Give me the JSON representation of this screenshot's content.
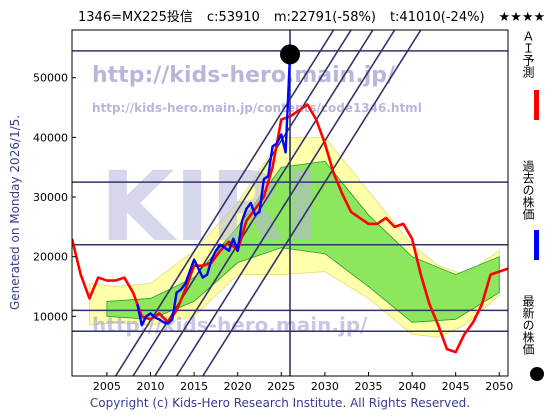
{
  "header": {
    "code": "1346=MX225投信",
    "current": "c:53910",
    "min": "m:22791(-58%)",
    "t": "t:41010(-24%)",
    "stars": "★★★★"
  },
  "left_caption": "Generated on Monday 2026/1/5.",
  "footer": "Copyright (c) Kids-Hero Research Institute. All Rights Reserved.",
  "watermark": {
    "url": "http://kids-hero.main.jp/",
    "url_path": "http://kids-hero.main.jp/contents/code1346.html",
    "big": "KIRI",
    "bottom": "http://kids-hero.main.jp/"
  },
  "legend": [
    {
      "label": "ＡＩ予測",
      "color": "#ff0000"
    },
    {
      "label": "過去の株価",
      "color": "#0000ff"
    },
    {
      "label": "最新の株価",
      "color": "#000000"
    }
  ],
  "colors": {
    "ai": "#ff0000",
    "past": "#0000ff",
    "green_band": "#66dd44",
    "yellow_band": "#ffffaa",
    "grid": "#33336b"
  },
  "chart_data": {
    "type": "line",
    "x_range": [
      2001,
      2051
    ],
    "y_range": [
      0,
      58000
    ],
    "x_ticks": [
      2005,
      2010,
      2015,
      2020,
      2025,
      2030,
      2035,
      2040,
      2045,
      2050
    ],
    "y_ticks": [
      10000,
      20000,
      30000,
      40000,
      50000
    ],
    "horizontal_lines": [
      54500,
      32500,
      22000,
      11000,
      7500
    ],
    "current_point": {
      "x": 2026.0,
      "y": 53910
    },
    "past_prices": {
      "x": [
        2008.5,
        2009.0,
        2009.5,
        2010.0,
        2010.5,
        2011.0,
        2011.5,
        2012.0,
        2012.5,
        2013.0,
        2013.5,
        2014.0,
        2014.5,
        2015.0,
        2015.5,
        2016.0,
        2016.5,
        2017.0,
        2017.5,
        2018.0,
        2018.5,
        2019.0,
        2019.5,
        2020.0,
        2020.5,
        2021.0,
        2021.5,
        2022.0,
        2022.5,
        2023.0,
        2023.5,
        2024.0,
        2024.5,
        2025.0,
        2025.5,
        2026.0
      ],
      "y": [
        12000,
        8500,
        10000,
        10500,
        9800,
        9500,
        9000,
        8800,
        9500,
        14000,
        14500,
        15500,
        17500,
        19500,
        18000,
        16500,
        17000,
        19500,
        21000,
        22000,
        21500,
        21000,
        23000,
        21000,
        26000,
        28000,
        29000,
        27000,
        27500,
        33000,
        33500,
        38500,
        39000,
        40500,
        37500,
        53900
      ]
    },
    "ai_prediction": {
      "x": [
        2001.0,
        2002.0,
        2003.0,
        2004.0,
        2005.0,
        2006.0,
        2007.0,
        2008.0,
        2009.0,
        2010.0,
        2011.0,
        2012.0,
        2013.0,
        2014.0,
        2015.0,
        2016.0,
        2017.0,
        2018.0,
        2019.0,
        2020.0,
        2021.0,
        2022.0,
        2023.0,
        2024.0,
        2025.0,
        2026.0,
        2027.0,
        2028.0,
        2029.0,
        2030.0,
        2031.0,
        2032.0,
        2033.0,
        2034.0,
        2035.0,
        2036.0,
        2037.0,
        2038.0,
        2039.0,
        2040.0,
        2041.0,
        2042.0,
        2043.0,
        2044.0,
        2045.0,
        2046.0,
        2047.0,
        2048.0,
        2049.0,
        2050.0,
        2051.0
      ],
      "y": [
        23000,
        17000,
        13000,
        16500,
        16000,
        16000,
        16500,
        14000,
        10000,
        9500,
        10500,
        9000,
        11000,
        14500,
        18500,
        18500,
        19000,
        21000,
        22500,
        21000,
        26000,
        28000,
        30000,
        35000,
        43000,
        43500,
        44500,
        45500,
        43000,
        39000,
        34000,
        30500,
        27500,
        26500,
        25500,
        25500,
        26500,
        25000,
        25500,
        23000,
        17000,
        12000,
        8500,
        4500,
        4000,
        7000,
        9000,
        12000,
        17000,
        17500,
        18000
      ]
    },
    "green_band": {
      "x": [
        2005.0,
        2010.0,
        2015.0,
        2020.0,
        2025.0,
        2030.0,
        2035.0,
        2040.0,
        2045.0,
        2050.0
      ],
      "upper": [
        12500,
        13000,
        16500,
        25000,
        35000,
        36000,
        27000,
        20000,
        17000,
        20000
      ],
      "lower": [
        10000,
        9500,
        12500,
        19000,
        21500,
        20500,
        15000,
        9000,
        9500,
        14000
      ]
    },
    "yellow_band": {
      "x": [
        2003.0,
        2006.0,
        2010.0,
        2015.0,
        2020.0,
        2025.0,
        2030.0,
        2035.0,
        2040.0,
        2043.0,
        2046.0,
        2050.0
      ],
      "upper": [
        15500,
        15000,
        15500,
        21000,
        29000,
        40000,
        40000,
        31000,
        22000,
        18500,
        17000,
        21000
      ],
      "lower": [
        8500,
        9000,
        8500,
        10000,
        17000,
        17000,
        17500,
        13000,
        7000,
        6500,
        8500,
        13500
      ]
    }
  }
}
